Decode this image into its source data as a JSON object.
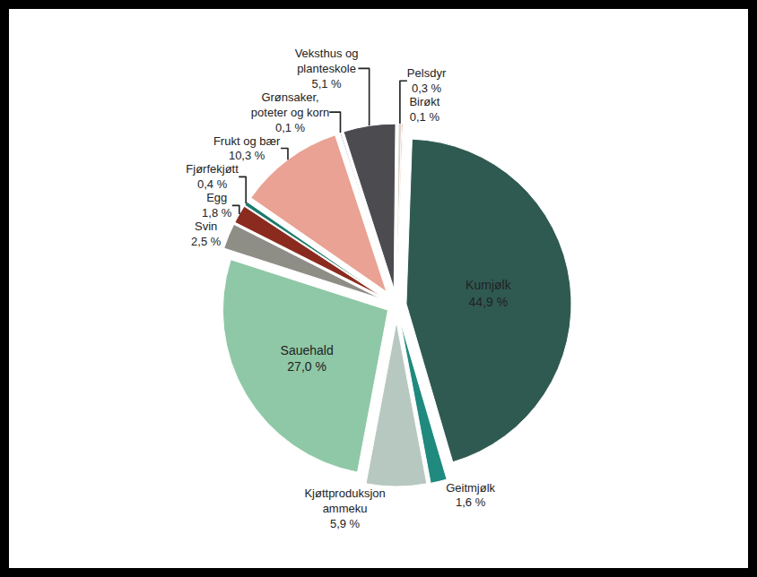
{
  "chart_data": {
    "type": "pie",
    "categories": [
      "Kumjølk",
      "Geitmjølk",
      "Kjøttproduksjon ammeku",
      "Sauehald",
      "Svin",
      "Egg",
      "Fjørfekjøtt",
      "Frukt  og bær",
      "Grønsaker, poteter og korn",
      "Veksthus og planteskole",
      "Pelsdyr",
      "Birøkt"
    ],
    "values": [
      44.9,
      1.6,
      5.9,
      27.0,
      2.5,
      1.8,
      0.4,
      10.3,
      0.1,
      5.1,
      0.3,
      0.1
    ],
    "value_labels": [
      "44,9 %",
      "1,6 %",
      "5,9 %",
      "27,0 %",
      "2,5 %",
      "1,8 %",
      "0,4 %",
      "10,3 %",
      "0,1 %",
      "5,1 %",
      "0,3 %",
      "0,1 %"
    ],
    "colors": [
      "#2f5a52",
      "#1f8a7d",
      "#b7c8c0",
      "#8fc8a6",
      "#8e8d86",
      "#8b2b1f",
      "#1d7a6c",
      "#e9a293",
      "#6b7b78",
      "#4b4b50",
      "#d9d1c8",
      "#d2502f"
    ],
    "data_labels": true
  }
}
